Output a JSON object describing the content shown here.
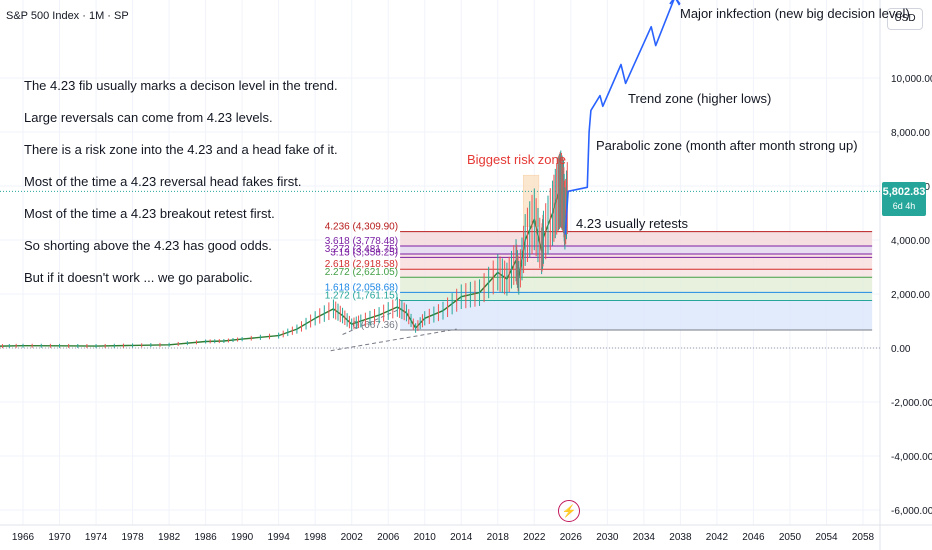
{
  "header": {
    "title": "S&P 500 Index · 1M · SP",
    "currency": "USD"
  },
  "price_tag": {
    "price": "5,802.83",
    "time": "6d 4h",
    "value": 5802.83
  },
  "notes": [
    "The 4.23 fib usually marks a decison level in the trend.",
    "Large reversals can come from 4.23 levels.",
    "There is a risk zone into the 4.23 and a head fake of it.",
    "Most of the time a 4.23 reversal head fakes first.",
    "Most of the time a 4.23 breakout retest first.",
    "So shorting above the 4.23 has good odds.",
    "But if it doesn't work ... we go parabolic."
  ],
  "annotations": {
    "risk_zone": "Biggest risk zone",
    "major": "Major inkfection (new big decision level)",
    "trend": "Trend zone (higher lows)",
    "parabolic": "Parabolic zone (month after month strong up)",
    "retest": "4.23 usually retests"
  },
  "chart_data": {
    "type": "line",
    "title": "S&P 500 Index · 1M · SP",
    "xlabel": "",
    "ylabel": "",
    "x_ticks": [
      1966,
      1970,
      1974,
      1978,
      1982,
      1986,
      1990,
      1994,
      1998,
      2002,
      2006,
      2010,
      2014,
      2018,
      2022,
      2026,
      2030,
      2034,
      2038,
      2042,
      2046,
      2050,
      2054,
      2058
    ],
    "y_ticks": [
      10000,
      8000,
      6000,
      4000,
      2000,
      0,
      -2000,
      -4000,
      -6000
    ],
    "y_tick_labels": [
      "10,000.00",
      "8,000.00",
      "6,000.00",
      "4,000.00",
      "2,000.00",
      "0.00",
      "-2,000.00",
      "-4,000.00",
      "-6,000.00"
    ],
    "xlim": [
      1963,
      2061
    ],
    "ylim": [
      -6500,
      12700
    ],
    "series": [
      {
        "points": [
          [
            1963,
            66
          ],
          [
            1966,
            85
          ],
          [
            1970,
            80
          ],
          [
            1974,
            70
          ],
          [
            1978,
            95
          ],
          [
            1982,
            120
          ],
          [
            1986,
            240
          ],
          [
            1988,
            260
          ],
          [
            1990,
            330
          ],
          [
            1994,
            460
          ],
          [
            1996,
            700
          ],
          [
            1998,
            1100
          ],
          [
            2000,
            1450
          ],
          [
            2001,
            1200
          ],
          [
            2002,
            880
          ],
          [
            2003,
            1000
          ],
          [
            2005,
            1220
          ],
          [
            2007,
            1520
          ],
          [
            2008,
            1300
          ],
          [
            2009,
            740
          ],
          [
            2010,
            1100
          ],
          [
            2012,
            1380
          ],
          [
            2014,
            1900
          ],
          [
            2016,
            2050
          ],
          [
            2018,
            2800
          ],
          [
            2019,
            2550
          ],
          [
            2020,
            3250
          ],
          [
            2020.3,
            2600
          ],
          [
            2021,
            4000
          ],
          [
            2022,
            4766
          ],
          [
            2022.8,
            3600
          ],
          [
            2023,
            4100
          ],
          [
            2024,
            5000
          ],
          [
            2024.6,
            5700
          ],
          [
            2024.9,
            5900
          ],
          [
            2025.2,
            5600
          ],
          [
            2025.35,
            4800
          ],
          [
            2025.7,
            5802.83
          ]
        ]
      }
    ],
    "fib_levels": [
      {
        "label": "4.236 (4,309.90)",
        "value": 4309.9,
        "color": "#b71c1c"
      },
      {
        "label": "3.618 (3,778.48)",
        "value": 3778.48,
        "color": "#7b1fa2"
      },
      {
        "label": "3.272 (3,481.75)",
        "value": 3481.75,
        "color": "#7b1fa2"
      },
      {
        "label": "3.13 (3,358.25)",
        "value": 3358.25,
        "color": "#7b1fa2"
      },
      {
        "label": "2.618 (2,918.58)",
        "value": 2918.58,
        "color": "#d32f2f"
      },
      {
        "label": "2.272 (2,621.05)",
        "value": 2621.05,
        "color": "#43a047"
      },
      {
        "label": "1.618 (2,058.68)",
        "value": 2058.68,
        "color": "#1e88e5"
      },
      {
        "label": "1.272 (1,761.15)",
        "value": 1761.15,
        "color": "#26a69a"
      },
      {
        "label": "0 (667.36)",
        "value": 667.36,
        "color": "#787b86"
      }
    ],
    "fib_zones": [
      {
        "from": 3778.48,
        "to": 4309.9,
        "color": "#f3d9dc"
      },
      {
        "from": 3481.75,
        "to": 3778.48,
        "color": "#e4d8ee"
      },
      {
        "from": 2918.58,
        "to": 3481.75,
        "color": "#f8dede"
      },
      {
        "from": 2621.05,
        "to": 2918.58,
        "color": "#f6e3e3"
      },
      {
        "from": 2058.68,
        "to": 2621.05,
        "color": "#e3efd8"
      },
      {
        "from": 1761.15,
        "to": 2058.68,
        "color": "#d7eedc"
      },
      {
        "from": 667.36,
        "to": 1761.15,
        "color": "#dce8fb"
      }
    ],
    "fib_x_range": [
      2007.3,
      2059
    ],
    "risk_zone": {
      "x_range": [
        2020.8,
        2022.5
      ],
      "y_range": [
        4500,
        6400
      ]
    },
    "projection": [
      [
        2025.4,
        4200
      ],
      [
        2025.7,
        5802.83
      ],
      [
        2027.8,
        5950
      ],
      [
        2028.0,
        8000
      ],
      [
        2028.2,
        8800
      ],
      [
        2029.2,
        9350
      ],
      [
        2029.5,
        8950
      ],
      [
        2031.5,
        10500
      ],
      [
        2032.0,
        9800
      ],
      [
        2034.8,
        11900
      ],
      [
        2035.3,
        11200
      ],
      [
        2037.4,
        13000
      ],
      [
        2037.9,
        12700
      ]
    ],
    "dashed_trend": [
      [
        1999.7,
        -100
      ],
      [
        2013.5,
        700
      ]
    ],
    "dashed_trend2": [
      [
        2001,
        500
      ],
      [
        2007,
        1400
      ]
    ],
    "current_line": 5802.83,
    "grid": true
  }
}
